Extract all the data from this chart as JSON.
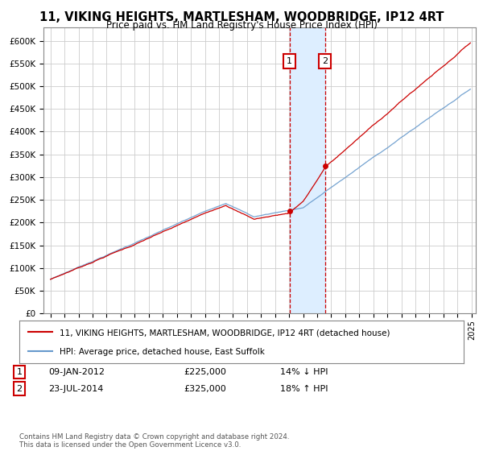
{
  "title": "11, VIKING HEIGHTS, MARTLESHAM, WOODBRIDGE, IP12 4RT",
  "subtitle": "Price paid vs. HM Land Registry's House Price Index (HPI)",
  "ylim": [
    0,
    630000
  ],
  "ytick_values": [
    0,
    50000,
    100000,
    150000,
    200000,
    250000,
    300000,
    350000,
    400000,
    450000,
    500000,
    550000,
    600000
  ],
  "x_start_year": 1995,
  "x_end_year": 2025,
  "sale1_date": 2012.04,
  "sale1_price": 225000,
  "sale1_label": "1",
  "sale2_date": 2014.55,
  "sale2_price": 325000,
  "sale2_label": "2",
  "sale_color": "#cc0000",
  "hpi_color": "#6699cc",
  "highlight_bg": "#ddeeff",
  "legend_line1": "11, VIKING HEIGHTS, MARTLESHAM, WOODBRIDGE, IP12 4RT (detached house)",
  "legend_line2": "HPI: Average price, detached house, East Suffolk",
  "annotation1_date": "09-JAN-2012",
  "annotation1_price": "£225,000",
  "annotation1_note": "14% ↓ HPI",
  "annotation2_date": "23-JUL-2014",
  "annotation2_price": "£325,000",
  "annotation2_note": "18% ↑ HPI",
  "footer": "Contains HM Land Registry data © Crown copyright and database right 2024.\nThis data is licensed under the Open Government Licence v3.0.",
  "background_color": "#ffffff"
}
